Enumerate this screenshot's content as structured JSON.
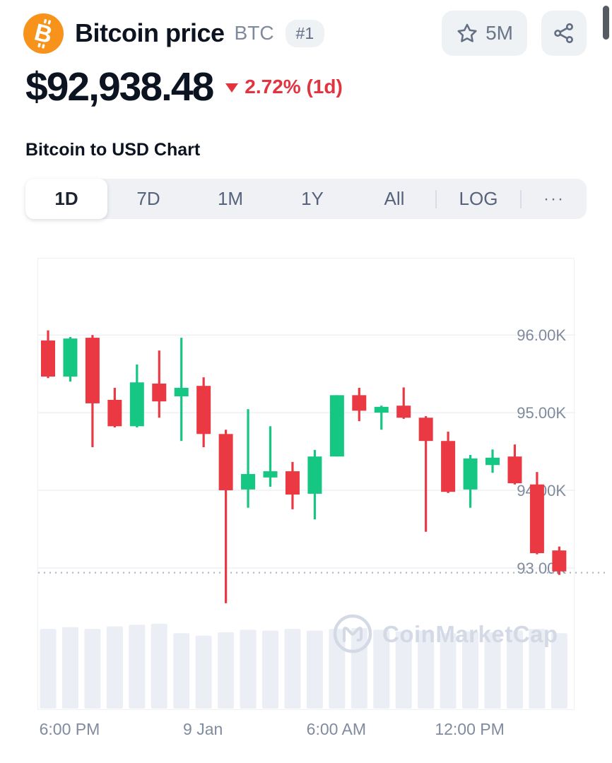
{
  "header": {
    "coin_name": "Bitcoin price",
    "ticker": "BTC",
    "rank_badge": "#1",
    "watchlist_count": "5M"
  },
  "price_section": {
    "price": "$92,938.48",
    "change_text": "2.72% (1d)",
    "change_direction": "down"
  },
  "chart_section": {
    "heading": "Bitcoin to USD Chart",
    "tabs": [
      {
        "label": "1D",
        "selected": true
      },
      {
        "label": "7D",
        "selected": false
      },
      {
        "label": "1M",
        "selected": false
      },
      {
        "label": "1Y",
        "selected": false
      },
      {
        "label": "All",
        "selected": false
      }
    ],
    "log_label": "LOG",
    "more_label": "···",
    "watermark": "CoinMarketCap"
  },
  "colors": {
    "up": "#16c784",
    "down": "#ea3943",
    "change_red": "#e2333e",
    "bitcoin_orange": "#f7931a",
    "dark_text": "#0d1421",
    "gray_text": "#808a9d",
    "light_bg": "#eff2f5",
    "volume_bar": "#ebeef5",
    "gridline": "#eef0f4",
    "dotted_line": "#a8b1c2",
    "watermark": "#d4dae5"
  },
  "chart_data": {
    "type": "candlestick",
    "interval": "1h",
    "time_span": "8 Jan 5:00 PM - 9 Jan 4:00 PM",
    "current_price": 92938.48,
    "ylim": [
      91160,
      96985
    ],
    "y_ticks": [
      {
        "label": "96.00K",
        "value": 96000,
        "gridline": true
      },
      {
        "label": "95.00K",
        "value": 95000,
        "gridline": true
      },
      {
        "label": "94.00K",
        "value": 94000,
        "gridline": true
      },
      {
        "label": "93.00K",
        "value": 93000,
        "gridline": true
      }
    ],
    "x_labels": [
      {
        "label": "6:00 PM",
        "index": 1
      },
      {
        "label": "9 Jan",
        "index": 7
      },
      {
        "label": "6:00 AM",
        "index": 13
      },
      {
        "label": "12:00 PM",
        "index": 19
      }
    ],
    "candles_ohlc": [
      [
        95930,
        96060,
        95445,
        95465
      ],
      [
        95465,
        95975,
        95400,
        95955
      ],
      [
        95965,
        96000,
        94555,
        95120
      ],
      [
        95165,
        95320,
        94810,
        94825
      ],
      [
        94825,
        95620,
        94810,
        95390
      ],
      [
        95375,
        95800,
        94935,
        95145
      ],
      [
        95210,
        95965,
        94635,
        95320
      ],
      [
        95345,
        95455,
        94555,
        94725
      ],
      [
        94725,
        94780,
        92545,
        94000
      ],
      [
        94010,
        95045,
        93775,
        94210
      ],
      [
        94165,
        94825,
        94045,
        94245
      ],
      [
        94245,
        94365,
        93755,
        93945
      ],
      [
        93955,
        94520,
        93625,
        94435
      ],
      [
        94435,
        95225,
        94435,
        95225
      ],
      [
        95225,
        95320,
        94890,
        95025
      ],
      [
        95000,
        95090,
        94780,
        95075
      ],
      [
        95090,
        95325,
        94920,
        94935
      ],
      [
        94935,
        94955,
        93465,
        94635
      ],
      [
        94635,
        94755,
        93965,
        93980
      ],
      [
        94010,
        94455,
        93775,
        94410
      ],
      [
        94325,
        94525,
        94225,
        94420
      ],
      [
        94435,
        94590,
        94075,
        94090
      ],
      [
        94075,
        94235,
        93175,
        93190
      ],
      [
        93225,
        93275,
        92910,
        92955
      ]
    ],
    "volumes_relative": [
      0.94,
      0.96,
      0.94,
      0.97,
      0.99,
      1.0,
      0.89,
      0.86,
      0.9,
      0.93,
      0.92,
      0.94,
      0.92,
      0.94,
      0.95,
      0.93,
      0.91,
      0.92,
      0.89,
      0.91,
      0.9,
      0.92,
      0.94,
      0.89
    ]
  }
}
